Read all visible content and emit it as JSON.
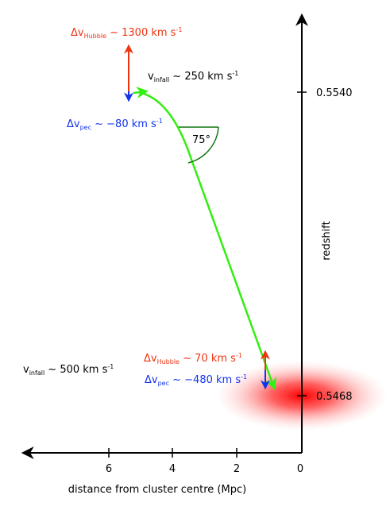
{
  "colors": {
    "trajectory": "#33ee11",
    "hubble": "#ee3311",
    "peculiar": "#1133ee",
    "axis": "#000000",
    "angle_arc": "#117711",
    "cluster_glow": "#ff0000"
  },
  "x_axis": {
    "label": "distance from cluster centre (Mpc)",
    "ticks": [
      "6",
      "4",
      "2",
      "0"
    ]
  },
  "y_axis": {
    "label": "redshift",
    "ticks": [
      "0.5540",
      "0.5468"
    ]
  },
  "angle": {
    "label": "75°"
  },
  "annotations": {
    "upper_hubble": {
      "prefix": "Δv",
      "sub": "Hubble",
      "suffix": " ~ 1300 km s",
      "sup": "-1"
    },
    "upper_infall": {
      "prefix": "v",
      "sub": "infall",
      "suffix": " ~ 250 km s",
      "sup": "-1"
    },
    "upper_pec": {
      "prefix": "Δv",
      "sub": "pec",
      "suffix": " ~ −80 km s",
      "sup": "-1"
    },
    "lower_hubble": {
      "prefix": "Δv",
      "sub": "Hubble",
      "suffix": " ~ 70 km s",
      "sup": "-1"
    },
    "lower_pec": {
      "prefix": "Δv",
      "sub": "pec",
      "suffix": " ~ −480 km s",
      "sup": "-1"
    },
    "lower_infall": {
      "prefix": "v",
      "sub": "infall",
      "suffix": " ~ 500 km s",
      "sup": "-1"
    }
  }
}
